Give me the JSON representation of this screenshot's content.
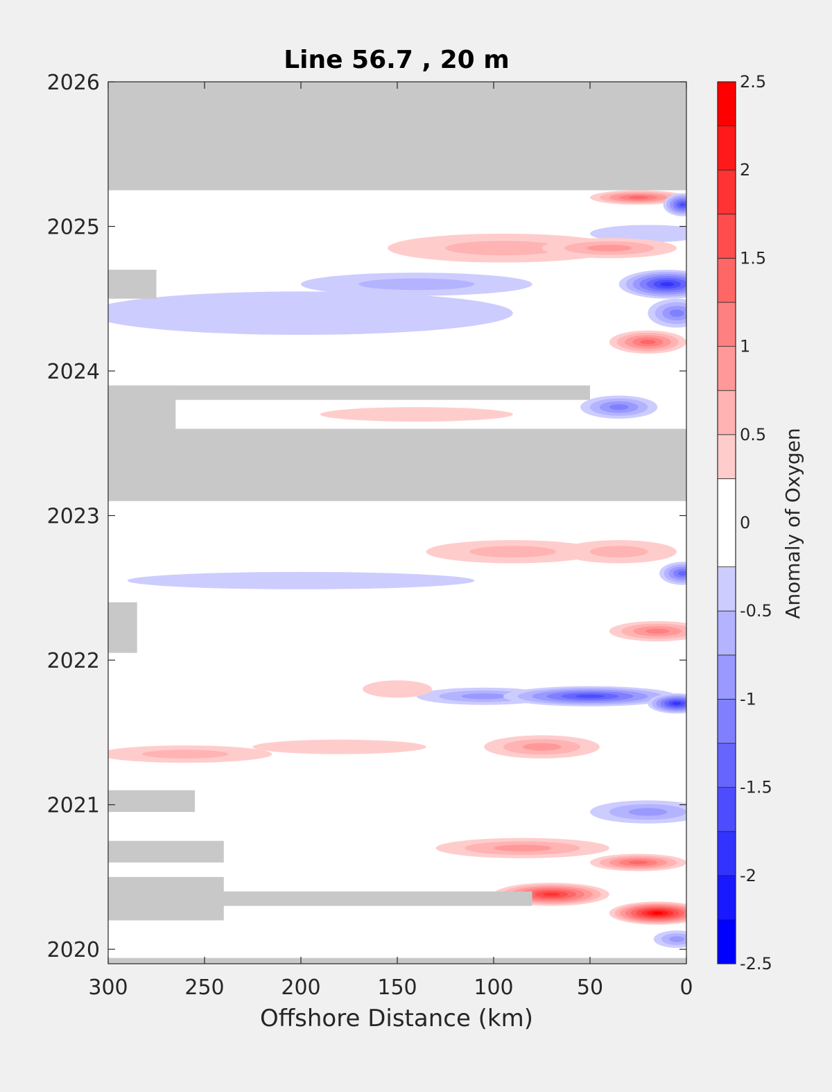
{
  "chart_data": {
    "type": "heatmap",
    "title": "Line 56.7 , 20 m",
    "xlabel": "Offshore Distance (km)",
    "ylabel": "",
    "xlim": [
      300,
      0
    ],
    "x_reversed": true,
    "ylim": [
      2019.9,
      2026
    ],
    "xticks": [
      300,
      250,
      200,
      150,
      100,
      50,
      0
    ],
    "yticks": [
      2020,
      2021,
      2022,
      2023,
      2024,
      2025,
      2026
    ],
    "colorbar": {
      "label": "Anomaly of Oxygen",
      "range": [
        -2.5,
        2.5
      ],
      "ticks": [
        -2.5,
        -2,
        -1.5,
        -1,
        -0.5,
        0,
        0.5,
        1,
        1.5,
        2,
        2.5
      ],
      "levels": [
        -2.5,
        -2.25,
        -2,
        -1.75,
        -1.5,
        -1.25,
        -1,
        -0.75,
        -0.5,
        -0.25,
        0.25,
        0.5,
        0.75,
        1,
        1.25,
        1.5,
        1.75,
        2,
        2.25,
        2.5
      ],
      "colormap": "blue-white-red"
    },
    "nodata_color": "#c8c8c8",
    "nodata_regions": [
      {
        "x": [
          0,
          300
        ],
        "y": [
          2025.25,
          2026
        ]
      },
      {
        "x": [
          0,
          300
        ],
        "y": [
          2023.1,
          2023.6
        ]
      },
      {
        "x": [
          50,
          300
        ],
        "y": [
          2023.8,
          2023.9
        ]
      },
      {
        "x": [
          265,
          300
        ],
        "y": [
          2023.6,
          2023.9
        ]
      },
      {
        "x": [
          275,
          300
        ],
        "y": [
          2024.5,
          2024.7
        ]
      },
      {
        "x": [
          285,
          300
        ],
        "y": [
          2022.05,
          2022.4
        ]
      },
      {
        "x": [
          255,
          300
        ],
        "y": [
          2020.95,
          2021.1
        ]
      },
      {
        "x": [
          240,
          300
        ],
        "y": [
          2020.6,
          2020.75
        ]
      },
      {
        "x": [
          80,
          300
        ],
        "y": [
          2020.3,
          2020.4
        ]
      },
      {
        "x": [
          240,
          300
        ],
        "y": [
          2020.2,
          2020.5
        ]
      },
      {
        "x": [
          0,
          300
        ],
        "y": [
          2019.9,
          2019.94
        ]
      }
    ],
    "anomalies": [
      {
        "x": 25,
        "y": 2025.2,
        "value": 1.5,
        "rx": 25,
        "ry": 0.05
      },
      {
        "x": 2,
        "y": 2025.15,
        "value": -1.6,
        "rx": 10,
        "ry": 0.08
      },
      {
        "x": 20,
        "y": 2024.95,
        "value": -0.4,
        "rx": 30,
        "ry": 0.06
      },
      {
        "x": 95,
        "y": 2024.85,
        "value": 0.7,
        "rx": 60,
        "ry": 0.1
      },
      {
        "x": 40,
        "y": 2024.85,
        "value": 0.8,
        "rx": 35,
        "ry": 0.07
      },
      {
        "x": 140,
        "y": 2024.6,
        "value": -0.6,
        "rx": 60,
        "ry": 0.08
      },
      {
        "x": 10,
        "y": 2024.6,
        "value": -1.8,
        "rx": 25,
        "ry": 0.1
      },
      {
        "x": 200,
        "y": 2024.4,
        "value": -0.3,
        "rx": 110,
        "ry": 0.15
      },
      {
        "x": 5,
        "y": 2024.4,
        "value": -1.2,
        "rx": 15,
        "ry": 0.1
      },
      {
        "x": 20,
        "y": 2024.2,
        "value": 1.3,
        "rx": 20,
        "ry": 0.08
      },
      {
        "x": 35,
        "y": 2023.75,
        "value": -1.1,
        "rx": 20,
        "ry": 0.08
      },
      {
        "x": 140,
        "y": 2023.7,
        "value": 0.4,
        "rx": 50,
        "ry": 0.05
      },
      {
        "x": 90,
        "y": 2022.75,
        "value": 0.6,
        "rx": 45,
        "ry": 0.08
      },
      {
        "x": 35,
        "y": 2022.75,
        "value": 0.7,
        "rx": 30,
        "ry": 0.08
      },
      {
        "x": 2,
        "y": 2022.6,
        "value": -1.5,
        "rx": 12,
        "ry": 0.08
      },
      {
        "x": 200,
        "y": 2022.55,
        "value": -0.35,
        "rx": 90,
        "ry": 0.06
      },
      {
        "x": 15,
        "y": 2022.2,
        "value": 1.1,
        "rx": 25,
        "ry": 0.07
      },
      {
        "x": 105,
        "y": 2021.75,
        "value": -0.9,
        "rx": 35,
        "ry": 0.06
      },
      {
        "x": 50,
        "y": 2021.75,
        "value": -1.6,
        "rx": 45,
        "ry": 0.07
      },
      {
        "x": 5,
        "y": 2021.7,
        "value": -1.8,
        "rx": 15,
        "ry": 0.07
      },
      {
        "x": 150,
        "y": 2021.8,
        "value": 0.4,
        "rx": 18,
        "ry": 0.06
      },
      {
        "x": 75,
        "y": 2021.4,
        "value": 1.0,
        "rx": 30,
        "ry": 0.08
      },
      {
        "x": 260,
        "y": 2021.35,
        "value": 0.6,
        "rx": 45,
        "ry": 0.06
      },
      {
        "x": 180,
        "y": 2021.4,
        "value": 0.45,
        "rx": 45,
        "ry": 0.05
      },
      {
        "x": 20,
        "y": 2020.95,
        "value": -1.0,
        "rx": 30,
        "ry": 0.08
      },
      {
        "x": 85,
        "y": 2020.7,
        "value": 0.8,
        "rx": 45,
        "ry": 0.07
      },
      {
        "x": 25,
        "y": 2020.6,
        "value": 1.3,
        "rx": 25,
        "ry": 0.06
      },
      {
        "x": 70,
        "y": 2020.38,
        "value": 2.0,
        "rx": 30,
        "ry": 0.08
      },
      {
        "x": 15,
        "y": 2020.25,
        "value": 2.4,
        "rx": 25,
        "ry": 0.08
      },
      {
        "x": 5,
        "y": 2020.07,
        "value": -1.0,
        "rx": 12,
        "ry": 0.06
      }
    ]
  }
}
